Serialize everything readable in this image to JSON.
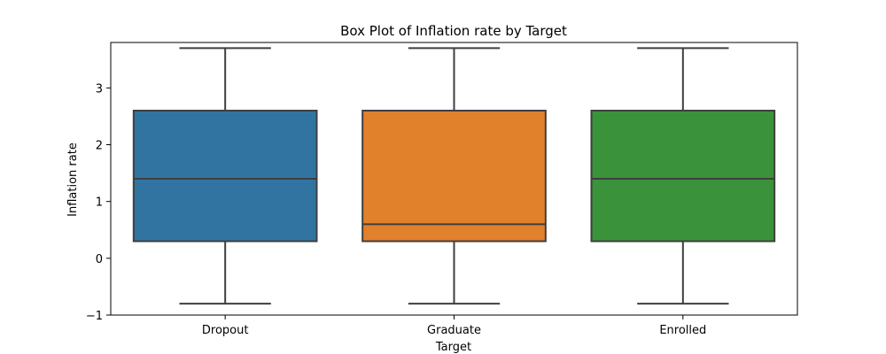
{
  "chart_data": {
    "type": "box",
    "title": "Box Plot of Inflation rate by Target",
    "xlabel": "Target",
    "ylabel": "Inflation rate",
    "ylim": [
      -1.0,
      3.8
    ],
    "yticks": [
      -1,
      0,
      1,
      2,
      3
    ],
    "ytick_labels": [
      "−1",
      "0",
      "1",
      "2",
      "3"
    ],
    "grid": false,
    "categories": [
      "Dropout",
      "Graduate",
      "Enrolled"
    ],
    "colors": [
      "#3274a1",
      "#e1812c",
      "#3a923a"
    ],
    "boxes": [
      {
        "min": -0.8,
        "q1": 0.3,
        "median": 1.4,
        "q3": 2.6,
        "max": 3.7
      },
      {
        "min": -0.8,
        "q1": 0.3,
        "median": 0.6,
        "q3": 2.6,
        "max": 3.7
      },
      {
        "min": -0.8,
        "q1": 0.3,
        "median": 1.4,
        "q3": 2.6,
        "max": 3.7
      }
    ]
  }
}
